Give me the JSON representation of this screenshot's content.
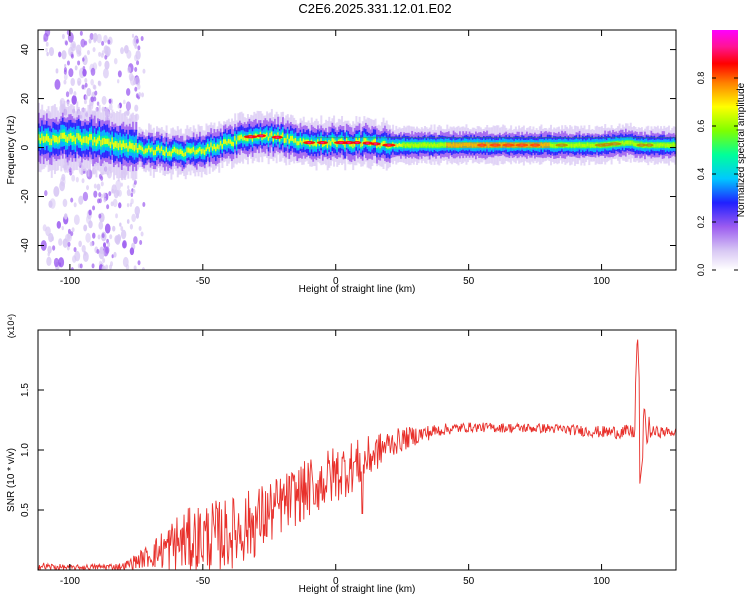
{
  "title": "C2E6.2025.331.12.01.E02",
  "chart_data": [
    {
      "type": "heatmap",
      "name": "spectrogram",
      "xlabel": "Height of straight line (km)",
      "ylabel": "Frequency (Hz)",
      "xlim": [
        -112,
        128
      ],
      "ylim": [
        -50,
        48
      ],
      "xticks": [
        -100,
        -50,
        0,
        50,
        100
      ],
      "yticks": [
        -40,
        -20,
        0,
        20,
        40
      ],
      "colorbar": {
        "label": "Normalized spectral amplitude",
        "range": [
          0,
          1
        ],
        "ticks": [
          0.0,
          0.2,
          0.4,
          0.6,
          0.8
        ],
        "colors": [
          "#ffffff",
          "#d8c8f4",
          "#9c5cf0",
          "#2020ff",
          "#00c8ff",
          "#00ff9a",
          "#7fff00",
          "#ffff00",
          "#ff8000",
          "#ff0000",
          "#ff1493",
          "#ff00ff"
        ]
      },
      "ridge": [
        {
          "x": -112,
          "freq": 3
        },
        {
          "x": -100,
          "freq": 4
        },
        {
          "x": -90,
          "freq": 3
        },
        {
          "x": -80,
          "freq": 1
        },
        {
          "x": -70,
          "freq": -1
        },
        {
          "x": -60,
          "freq": -2
        },
        {
          "x": -50,
          "freq": -1
        },
        {
          "x": -40,
          "freq": 2
        },
        {
          "x": -30,
          "freq": 5
        },
        {
          "x": -20,
          "freq": 4
        },
        {
          "x": -10,
          "freq": 2
        },
        {
          "x": 0,
          "freq": 2
        },
        {
          "x": 10,
          "freq": 2
        },
        {
          "x": 20,
          "freq": 1
        },
        {
          "x": 50,
          "freq": 1
        },
        {
          "x": 80,
          "freq": 1
        },
        {
          "x": 100,
          "freq": 1
        },
        {
          "x": 110,
          "freq": 2
        },
        {
          "x": 115,
          "freq": 1
        },
        {
          "x": 128,
          "freq": 1
        }
      ],
      "hot_spots_x": [
        -32,
        -28,
        -22,
        -10,
        -5,
        2,
        5,
        8,
        12,
        15,
        20,
        55,
        60,
        65,
        70,
        75,
        85,
        100,
        102,
        105,
        115,
        118
      ]
    },
    {
      "type": "line",
      "name": "snr",
      "xlabel": "Height of straight line (km)",
      "ylabel": "SNR (10 * v/v)",
      "yscale_label": "(x10⁴)",
      "xlim": [
        -112,
        128
      ],
      "ylim": [
        0,
        2.0
      ],
      "xticks": [
        -100,
        -50,
        0,
        50,
        100
      ],
      "yticks": [
        0.5,
        1.0,
        1.5
      ],
      "line_color": "#e8302b",
      "envelope": [
        {
          "x": -112,
          "mean": 0.03,
          "amp": 0.04
        },
        {
          "x": -100,
          "mean": 0.02,
          "amp": 0.02
        },
        {
          "x": -80,
          "mean": 0.03,
          "amp": 0.03
        },
        {
          "x": -70,
          "mean": 0.12,
          "amp": 0.1
        },
        {
          "x": -60,
          "mean": 0.22,
          "amp": 0.25
        },
        {
          "x": -50,
          "mean": 0.27,
          "amp": 0.3
        },
        {
          "x": -40,
          "mean": 0.3,
          "amp": 0.3
        },
        {
          "x": -30,
          "mean": 0.4,
          "amp": 0.3
        },
        {
          "x": -20,
          "mean": 0.55,
          "amp": 0.25
        },
        {
          "x": -10,
          "mean": 0.68,
          "amp": 0.25
        },
        {
          "x": 0,
          "mean": 0.8,
          "amp": 0.25
        },
        {
          "x": 10,
          "mean": 0.9,
          "amp": 0.2
        },
        {
          "x": 20,
          "mean": 1.05,
          "amp": 0.12
        },
        {
          "x": 30,
          "mean": 1.12,
          "amp": 0.08
        },
        {
          "x": 40,
          "mean": 1.17,
          "amp": 0.05
        },
        {
          "x": 50,
          "mean": 1.19,
          "amp": 0.04
        },
        {
          "x": 80,
          "mean": 1.18,
          "amp": 0.04
        },
        {
          "x": 100,
          "mean": 1.15,
          "amp": 0.05
        },
        {
          "x": 110,
          "mean": 1.15,
          "amp": 0.06
        },
        {
          "x": 128,
          "mean": 1.15,
          "amp": 0.04
        }
      ],
      "spike": {
        "x": 113.5,
        "peak": 1.98,
        "trough": 0.68
      },
      "dips": [
        {
          "x": 10,
          "value": 0.47
        },
        {
          "x": -8,
          "value": 0.55
        }
      ]
    }
  ]
}
